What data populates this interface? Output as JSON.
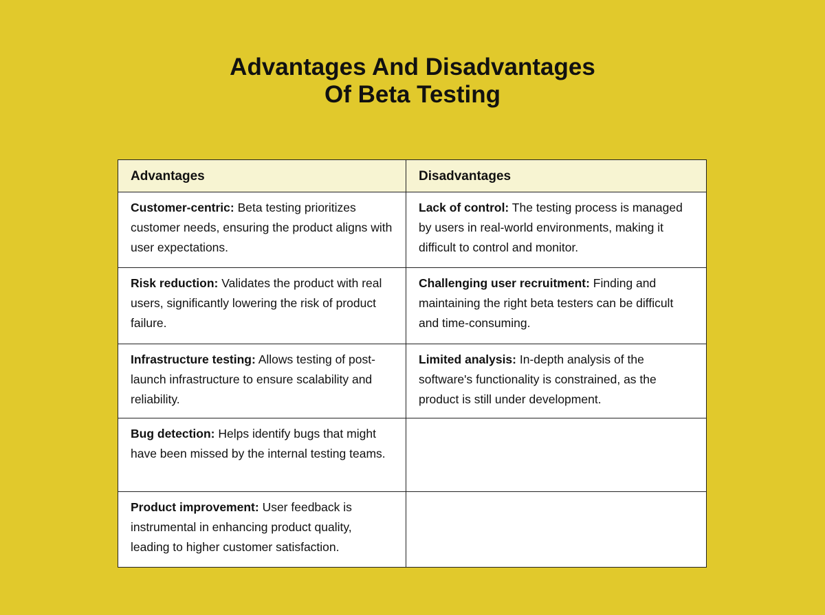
{
  "title": {
    "line1": "Advantages And Disadvantages",
    "line2": "Of Beta Testing"
  },
  "table": {
    "headers": [
      "Advantages",
      "Disadvantages"
    ],
    "rows": [
      {
        "adv": {
          "term": "Customer-centric:",
          "text": " Beta testing prioritizes customer needs, ensuring the product aligns with user expectations."
        },
        "dis": {
          "term": "Lack of control:",
          "text": " The testing process is managed by users in real-world environments, making it difficult to control and monitor."
        }
      },
      {
        "adv": {
          "term": "Risk reduction:",
          "text": " Validates the product with real users, significantly lowering the risk of product failure."
        },
        "dis": {
          "term": "Challenging user recruitment:",
          "text": " Finding and maintaining the right beta testers can be difficult and time-consuming."
        }
      },
      {
        "adv": {
          "term": "Infrastructure testing:",
          "text": " Allows testing of post-launch infrastructure to ensure scalability and reliability."
        },
        "dis": {
          "term": "Limited analysis:",
          "text": " In-depth analysis of the software's functionality is constrained, as the product is still under development."
        }
      },
      {
        "adv": {
          "term": "Bug detection:",
          "text": " Helps identify bugs that might have been missed by the internal testing teams."
        },
        "dis": {
          "term": "",
          "text": ""
        }
      },
      {
        "adv": {
          "term": "Product improvement:",
          "text": " User feedback is instrumental in enhancing product quality, leading to higher customer satisfaction."
        },
        "dis": {
          "term": "",
          "text": ""
        }
      }
    ]
  },
  "colors": {
    "background": "#E1C92C",
    "header_bg": "#F7F4D2",
    "cell_bg": "#FFFFFF",
    "border": "#222222"
  }
}
